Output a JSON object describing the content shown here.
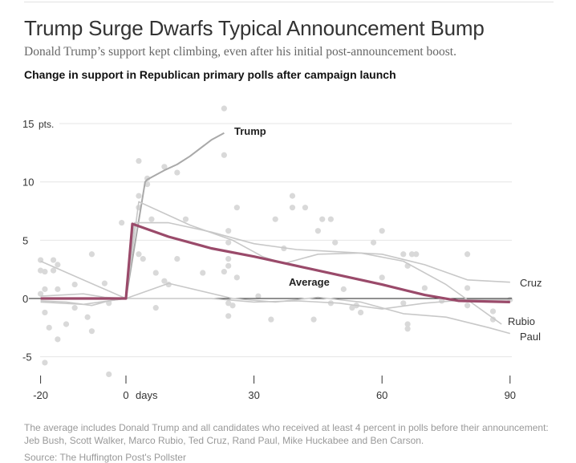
{
  "header": {
    "title": "Trump Surge Dwarfs Typical Announcement Bump",
    "subtitle": "Donald Trump’s support kept climbing, even after his initial post-announcement boost.",
    "chart_heading": "Change in support in Republican primary polls after campaign launch"
  },
  "footer": {
    "note": "The average includes Donald Trump and all candidates who received at least 4 percent in polls before their announcement: Jeb Bush, Scott Walker, Marco Rubio, Ted Cruz, Rand Paul, Mike Huckabee and Ben Carson.",
    "source": "Source: The Huffington Post's Pollster"
  },
  "chart_data": {
    "type": "line",
    "title": "Change in support in Republican primary polls after campaign launch",
    "xlabel": "days",
    "ylabel": "pts.",
    "xlim": [
      -20,
      90
    ],
    "ylim": [
      -6.5,
      16.5
    ],
    "x_ticks": [
      {
        "value": -20,
        "label": "-20"
      },
      {
        "value": 0,
        "label": "0"
      },
      {
        "value": 30,
        "label": "30"
      },
      {
        "value": 60,
        "label": "60"
      },
      {
        "value": 90,
        "label": "90"
      }
    ],
    "x_unit_label": "days",
    "y_ticks": [
      {
        "value": 15,
        "label": "15",
        "unit": "pts."
      },
      {
        "value": 10,
        "label": "10"
      },
      {
        "value": 5,
        "label": "5"
      },
      {
        "value": 0,
        "label": "0"
      },
      {
        "value": -5,
        "label": "-5"
      }
    ],
    "grid": true,
    "colors": {
      "average": "#9a4a6a",
      "candidate": "#c8c8c8",
      "trump": "#a9a9a9",
      "dots": "#d9d9d9",
      "zero": "#222222"
    },
    "series": [
      {
        "name": "Average",
        "emphasis": true,
        "points": [
          [
            -20,
            0
          ],
          [
            -10,
            0
          ],
          [
            0,
            0
          ],
          [
            1.5,
            6.4
          ],
          [
            10,
            5.3
          ],
          [
            20,
            4.3
          ],
          [
            30,
            3.6
          ],
          [
            40,
            2.8
          ],
          [
            50,
            2.0
          ],
          [
            60,
            1.2
          ],
          [
            70,
            0.3
          ],
          [
            78,
            -0.2
          ],
          [
            90,
            -0.3
          ]
        ]
      },
      {
        "name": "Trump",
        "points": [
          [
            0,
            0
          ],
          [
            4.5,
            10
          ],
          [
            5,
            10.2
          ],
          [
            9,
            11.0
          ],
          [
            12,
            11.5
          ],
          [
            15,
            12.2
          ],
          [
            20,
            13.6
          ],
          [
            23,
            14.2
          ]
        ]
      },
      {
        "name": "Cruz",
        "points": [
          [
            0,
            0
          ],
          [
            2,
            6.5
          ],
          [
            10,
            6.5
          ],
          [
            20,
            5.7
          ],
          [
            30,
            4.7
          ],
          [
            40,
            4.2
          ],
          [
            60,
            3.8
          ],
          [
            70,
            2.9
          ],
          [
            80,
            1.6
          ],
          [
            90,
            1.4
          ]
        ]
      },
      {
        "name": "Rubio",
        "points": [
          [
            0,
            0
          ],
          [
            3,
            8.3
          ],
          [
            15,
            6.3
          ],
          [
            25,
            5
          ],
          [
            32,
            3.6
          ],
          [
            37,
            3.0
          ],
          [
            45,
            3.8
          ],
          [
            55,
            3.9
          ],
          [
            65,
            3.2
          ],
          [
            75,
            1.2
          ],
          [
            80,
            -0.1
          ],
          [
            88,
            -2.2
          ]
        ]
      },
      {
        "name": "Paul",
        "points": [
          [
            -20,
            -0.3
          ],
          [
            -10,
            -0.5
          ],
          [
            0,
            0
          ],
          [
            10,
            1.3
          ],
          [
            25,
            0
          ],
          [
            35,
            -0.3
          ],
          [
            45,
            0.1
          ],
          [
            55,
            -0.3
          ],
          [
            65,
            -1.3
          ],
          [
            75,
            -1.6
          ],
          [
            85,
            -2.5
          ],
          [
            90,
            -3.0
          ]
        ]
      },
      {
        "points": [
          [
            -20,
            3.2
          ],
          [
            0,
            0
          ]
        ]
      },
      {
        "points": [
          [
            -20,
            0.2
          ],
          [
            -10,
            0.4
          ],
          [
            -5,
            0.1
          ],
          [
            0,
            0
          ]
        ]
      },
      {
        "points": [
          [
            -20,
            -0.2
          ],
          [
            -14,
            -0.3
          ],
          [
            -8,
            -0.6
          ],
          [
            -4,
            -0.2
          ],
          [
            0,
            0
          ]
        ]
      },
      {
        "points": [
          [
            0,
            0
          ],
          [
            20,
            0
          ],
          [
            30,
            -0.3
          ],
          [
            40,
            -0.2
          ],
          [
            50,
            -0.4
          ],
          [
            60,
            -0.9
          ],
          [
            70,
            -0.4
          ],
          [
            80,
            -0.1
          ],
          [
            90,
            -0.1
          ]
        ]
      }
    ],
    "polls": [
      [
        -20,
        3.3
      ],
      [
        -20,
        2.4
      ],
      [
        -19,
        2.3
      ],
      [
        -19,
        0.8
      ],
      [
        -20,
        0.4
      ],
      [
        -19,
        -1.2
      ],
      [
        -18,
        -2.5
      ],
      [
        -17,
        3.3
      ],
      [
        -17,
        2.4
      ],
      [
        -16,
        2.9
      ],
      [
        -16,
        0.8
      ],
      [
        -16,
        -3.5
      ],
      [
        -14,
        -2.2
      ],
      [
        -12,
        1.2
      ],
      [
        -12,
        -0.8
      ],
      [
        -8,
        3.8
      ],
      [
        -9,
        -1.6
      ],
      [
        -8,
        -2.8
      ],
      [
        -5,
        1.3
      ],
      [
        -4,
        -0.4
      ],
      [
        -4,
        -6.5
      ],
      [
        -1,
        6.5
      ],
      [
        -19,
        -5.5
      ],
      [
        3,
        11.8
      ],
      [
        3,
        8.8
      ],
      [
        3,
        7.8
      ],
      [
        3,
        3.8
      ],
      [
        4,
        3.4
      ],
      [
        5,
        10.3
      ],
      [
        5,
        9.8
      ],
      [
        6,
        6.8
      ],
      [
        7,
        2.2
      ],
      [
        7,
        -0.8
      ],
      [
        9,
        1.5
      ],
      [
        10,
        1.2
      ],
      [
        9,
        11.3
      ],
      [
        12,
        10.8
      ],
      [
        12,
        3.4
      ],
      [
        14,
        6.8
      ],
      [
        18,
        2.2
      ],
      [
        23,
        16.3
      ],
      [
        23,
        12.3
      ],
      [
        24,
        5.8
      ],
      [
        24,
        4.8
      ],
      [
        24,
        3.4
      ],
      [
        24,
        2.8
      ],
      [
        23,
        2.3
      ],
      [
        24,
        -0.4
      ],
      [
        24,
        -1.5
      ],
      [
        25,
        -0.6
      ],
      [
        26,
        1.8
      ],
      [
        26,
        7.8
      ],
      [
        31,
        0.2
      ],
      [
        34,
        -1.8
      ],
      [
        35,
        6.8
      ],
      [
        37,
        4.3
      ],
      [
        39,
        7.8
      ],
      [
        39,
        8.8
      ],
      [
        42,
        7.8
      ],
      [
        44,
        -1.8
      ],
      [
        45,
        5.8
      ],
      [
        46,
        6.8
      ],
      [
        48,
        6.8
      ],
      [
        48,
        -0.4
      ],
      [
        49,
        4.8
      ],
      [
        51,
        0.8
      ],
      [
        53,
        -0.8
      ],
      [
        54,
        -0.6
      ],
      [
        55,
        -1.2
      ],
      [
        58,
        4.8
      ],
      [
        60,
        5.8
      ],
      [
        60,
        1.8
      ],
      [
        65,
        3.8
      ],
      [
        65,
        -0.4
      ],
      [
        66,
        -2.6
      ],
      [
        66,
        -2.2
      ],
      [
        66,
        2.8
      ],
      [
        67,
        3.8
      ],
      [
        68,
        3.8
      ],
      [
        70,
        0.9
      ],
      [
        74,
        -0.2
      ],
      [
        80,
        3.8
      ],
      [
        80,
        0.9
      ],
      [
        80,
        -0.6
      ],
      [
        86,
        -1.1
      ],
      [
        86,
        -1.8
      ],
      [
        90,
        -0.1
      ]
    ]
  }
}
